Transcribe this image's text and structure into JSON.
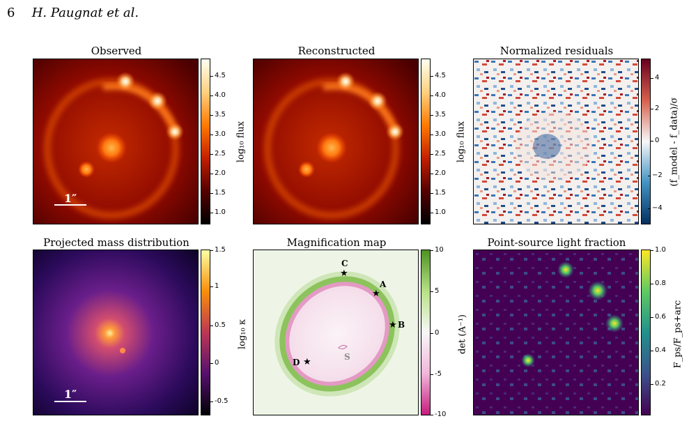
{
  "header": {
    "page_number": "6",
    "authors": "H. Paugnat et al."
  },
  "panels": {
    "observed": {
      "title": "Observed",
      "scale": "1″"
    },
    "reconstructed": {
      "title": "Reconstructed"
    },
    "residuals": {
      "title": "Normalized residuals"
    },
    "mass": {
      "title": "Projected mass distribution",
      "scale": "1″"
    },
    "magnification": {
      "title": "Magnification map"
    },
    "psfraction": {
      "title": "Point-source light fraction"
    }
  },
  "colorbars": {
    "flux": {
      "label": "log₁₀ flux",
      "ticks": [
        "4.5",
        "4.0",
        "3.5",
        "3.0",
        "2.5",
        "2.0",
        "1.5",
        "1.0"
      ]
    },
    "flux2": {
      "label": "log₁₀ flux",
      "ticks": [
        "4.5",
        "4.0",
        "3.5",
        "3.0",
        "2.5",
        "2.0",
        "1.5",
        "1.0"
      ]
    },
    "residuals": {
      "label": "(f_model - f_data)/σ",
      "ticks": [
        "4",
        "2",
        "0",
        "−2",
        "−4"
      ]
    },
    "kappa": {
      "label": "log₁₀ κ",
      "ticks": [
        "1.5",
        "1",
        "0.5",
        "0",
        "-0.5"
      ]
    },
    "det": {
      "label": "det (A⁻¹)",
      "ticks": [
        "10",
        "5",
        "0",
        "-5",
        "-10"
      ]
    },
    "fraction": {
      "label": "F_ps/F_ps+arc",
      "ticks": [
        "1.0",
        "0.8",
        "0.6",
        "0.4",
        "0.2"
      ]
    }
  },
  "magnification_labels": {
    "A": "A",
    "B": "B",
    "C": "C",
    "D": "D",
    "S": "S"
  },
  "colors": {
    "lens_core": "#ffe8a0",
    "ring": "#ff9900",
    "critical_green": "#88c057",
    "critical_pink": "#e07ab8"
  }
}
